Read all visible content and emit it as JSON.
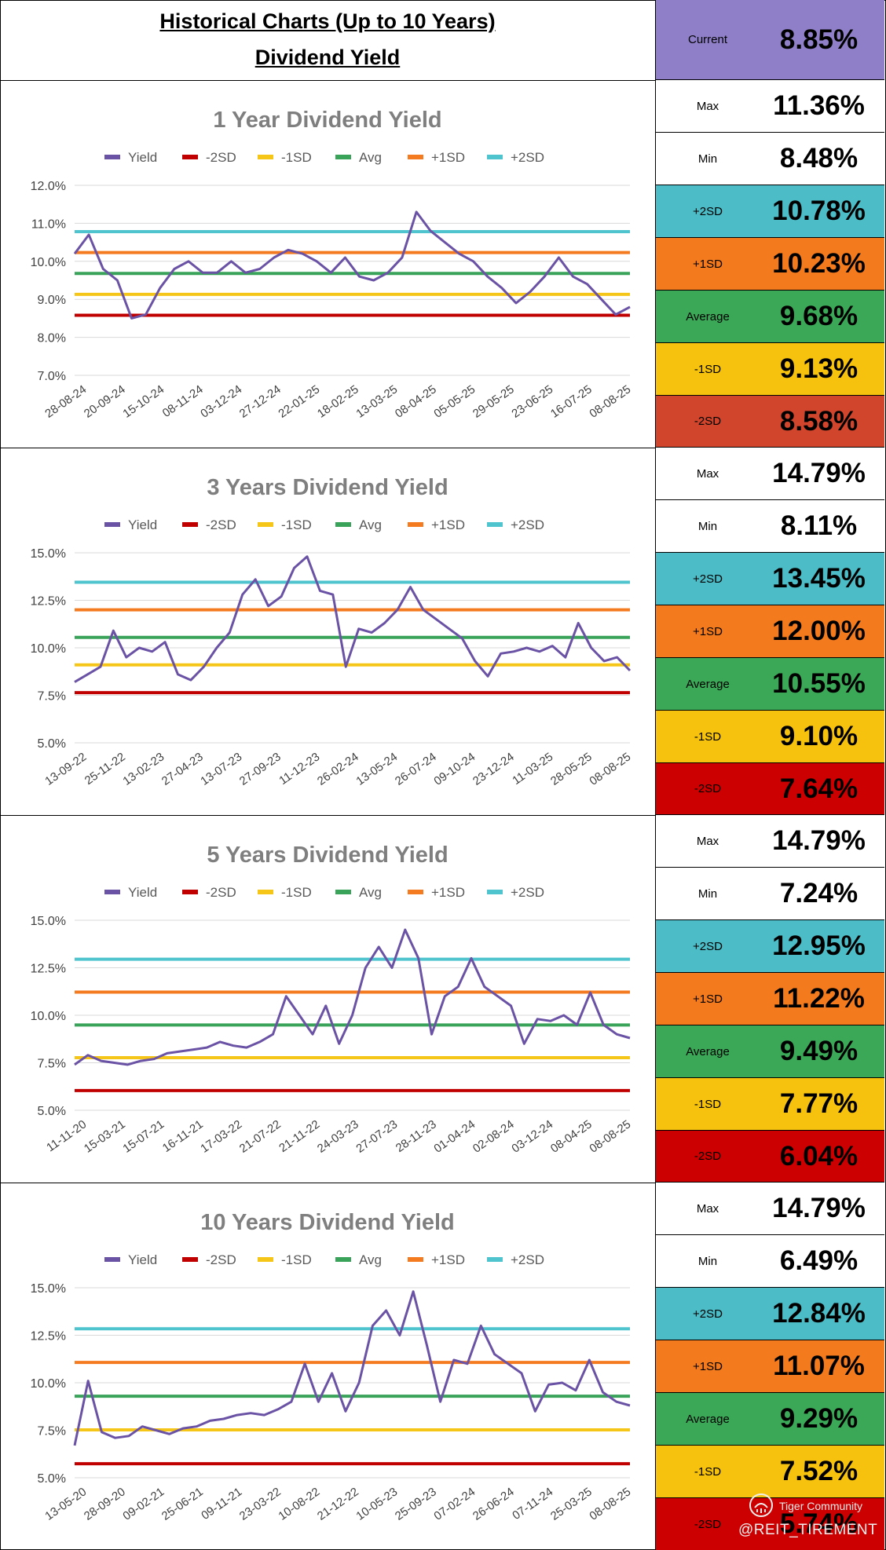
{
  "header": {
    "title_line1": "Historical Charts (Up to 10 Years)",
    "title_line2": "Dividend Yield",
    "current_label": "Current",
    "current_value": "8.85%"
  },
  "colors": {
    "yield": "#6a52a5",
    "minus2sd": "#c00000",
    "minus1sd": "#f5c518",
    "avg": "#3aa35a",
    "plus1sd": "#f47b20",
    "plus2sd": "#4fc4cf",
    "current_bg": "#8f7fc8",
    "stat_plus2sd_bg": "#4cbcc7",
    "stat_plus1sd_bg": "#f47a1e",
    "stat_avg_bg": "#3aa857",
    "stat_minus1sd_bg": "#f6c20e",
    "stat_minus2sd_bg_1y": "#d0452b",
    "stat_minus2sd_bg": "#cc0000"
  },
  "legend": [
    "Yield",
    "-2SD",
    "-1SD",
    "Avg",
    "+1SD",
    "+2SD"
  ],
  "panels": [
    {
      "stats": [
        {
          "label": "Max",
          "value": "11.36%"
        },
        {
          "label": "Min",
          "value": "8.48%"
        },
        {
          "label": "+2SD",
          "value": "10.78%"
        },
        {
          "label": "+1SD",
          "value": "10.23%"
        },
        {
          "label": "Average",
          "value": "9.68%"
        },
        {
          "label": "-1SD",
          "value": "9.13%"
        },
        {
          "label": "-2SD",
          "value": "8.58%"
        }
      ]
    },
    {
      "stats": [
        {
          "label": "Max",
          "value": "14.79%"
        },
        {
          "label": "Min",
          "value": "8.11%"
        },
        {
          "label": "+2SD",
          "value": "13.45%"
        },
        {
          "label": "+1SD",
          "value": "12.00%"
        },
        {
          "label": "Average",
          "value": "10.55%"
        },
        {
          "label": "-1SD",
          "value": "9.10%"
        },
        {
          "label": "-2SD",
          "value": "7.64%"
        }
      ]
    },
    {
      "stats": [
        {
          "label": "Max",
          "value": "14.79%"
        },
        {
          "label": "Min",
          "value": "7.24%"
        },
        {
          "label": "+2SD",
          "value": "12.95%"
        },
        {
          "label": "+1SD",
          "value": "11.22%"
        },
        {
          "label": "Average",
          "value": "9.49%"
        },
        {
          "label": "-1SD",
          "value": "7.77%"
        },
        {
          "label": "-2SD",
          "value": "6.04%"
        }
      ]
    },
    {
      "stats": [
        {
          "label": "Max",
          "value": "14.79%"
        },
        {
          "label": "Min",
          "value": "6.49%"
        },
        {
          "label": "+2SD",
          "value": "12.84%"
        },
        {
          "label": "+1SD",
          "value": "11.07%"
        },
        {
          "label": "Average",
          "value": "9.29%"
        },
        {
          "label": "-1SD",
          "value": "7.52%"
        },
        {
          "label": "-2SD",
          "value": "5.74%"
        }
      ]
    }
  ],
  "chart_data": [
    {
      "type": "line",
      "title": "1 Year Dividend Yield",
      "yticks": [
        "12.0%",
        "11.0%",
        "10.0%",
        "9.0%",
        "8.0%",
        "7.0%"
      ],
      "ylim": [
        7.0,
        12.0
      ],
      "x": [
        "28-08-24",
        "20-09-24",
        "15-10-24",
        "08-11-24",
        "03-12-24",
        "27-12-24",
        "22-01-25",
        "18-02-25",
        "13-03-25",
        "08-04-25",
        "05-05-25",
        "29-05-25",
        "23-06-25",
        "16-07-25",
        "08-08-25"
      ],
      "yield": [
        10.2,
        10.7,
        9.8,
        9.5,
        8.5,
        8.6,
        9.3,
        9.8,
        10.0,
        9.7,
        9.7,
        10.0,
        9.7,
        9.8,
        10.1,
        10.3,
        10.2,
        10.0,
        9.7,
        10.1,
        9.6,
        9.5,
        9.7,
        10.1,
        11.3,
        10.8,
        10.5,
        10.2,
        10.0,
        9.6,
        9.3,
        8.9,
        9.2,
        9.6,
        10.1,
        9.6,
        9.4,
        9.0,
        8.6,
        8.8
      ],
      "series": [
        {
          "name": "-2SD",
          "value": 8.58
        },
        {
          "name": "-1SD",
          "value": 9.13
        },
        {
          "name": "Avg",
          "value": 9.68
        },
        {
          "name": "+1SD",
          "value": 10.23
        },
        {
          "name": "+2SD",
          "value": 10.78
        }
      ],
      "grid": true,
      "legend_position": "top"
    },
    {
      "type": "line",
      "title": "3 Years Dividend Yield",
      "yticks": [
        "15.0%",
        "12.5%",
        "10.0%",
        "7.5%",
        "5.0%"
      ],
      "ylim": [
        5.0,
        15.0
      ],
      "x": [
        "13-09-22",
        "25-11-22",
        "13-02-23",
        "27-04-23",
        "13-07-23",
        "27-09-23",
        "11-12-23",
        "26-02-24",
        "13-05-24",
        "26-07-24",
        "09-10-24",
        "23-12-24",
        "11-03-25",
        "28-05-25",
        "08-08-25"
      ],
      "yield": [
        8.2,
        8.6,
        9.0,
        10.9,
        9.5,
        10.0,
        9.8,
        10.3,
        8.6,
        8.3,
        9.0,
        10.0,
        10.8,
        12.8,
        13.6,
        12.2,
        12.7,
        14.2,
        14.8,
        13.0,
        12.8,
        9.0,
        11.0,
        10.8,
        11.3,
        12.0,
        13.2,
        12.0,
        11.5,
        11.0,
        10.5,
        9.3,
        8.5,
        9.7,
        9.8,
        10.0,
        9.8,
        10.1,
        9.5,
        11.3,
        10.0,
        9.3,
        9.5,
        8.8
      ],
      "series": [
        {
          "name": "-2SD",
          "value": 7.64
        },
        {
          "name": "-1SD",
          "value": 9.1
        },
        {
          "name": "Avg",
          "value": 10.55
        },
        {
          "name": "+1SD",
          "value": 12.0
        },
        {
          "name": "+2SD",
          "value": 13.45
        }
      ],
      "grid": true,
      "legend_position": "top"
    },
    {
      "type": "line",
      "title": "5 Years Dividend Yield",
      "yticks": [
        "15.0%",
        "12.5%",
        "10.0%",
        "7.5%",
        "5.0%"
      ],
      "ylim": [
        5.0,
        15.0
      ],
      "x": [
        "11-11-20",
        "15-03-21",
        "15-07-21",
        "16-11-21",
        "17-03-22",
        "21-07-22",
        "21-11-22",
        "24-03-23",
        "27-07-23",
        "28-11-23",
        "01-04-24",
        "02-08-24",
        "03-12-24",
        "08-04-25",
        "08-08-25"
      ],
      "yield": [
        7.4,
        7.9,
        7.6,
        7.5,
        7.4,
        7.6,
        7.7,
        8.0,
        8.1,
        8.2,
        8.3,
        8.6,
        8.4,
        8.3,
        8.6,
        9.0,
        11.0,
        10.0,
        9.0,
        10.5,
        8.5,
        10.0,
        12.5,
        13.6,
        12.5,
        14.5,
        13.0,
        9.0,
        11.0,
        11.5,
        13.0,
        11.5,
        11.0,
        10.5,
        8.5,
        9.8,
        9.7,
        10.0,
        9.5,
        11.2,
        9.5,
        9.0,
        8.8
      ],
      "series": [
        {
          "name": "-2SD",
          "value": 6.04
        },
        {
          "name": "-1SD",
          "value": 7.77
        },
        {
          "name": "Avg",
          "value": 9.49
        },
        {
          "name": "+1SD",
          "value": 11.22
        },
        {
          "name": "+2SD",
          "value": 12.95
        }
      ],
      "grid": true,
      "legend_position": "top"
    },
    {
      "type": "line",
      "title": "10 Years Dividend Yield",
      "yticks": [
        "15.0%",
        "12.5%",
        "10.0%",
        "7.5%",
        "5.0%"
      ],
      "ylim": [
        5.0,
        15.0
      ],
      "x": [
        "13-05-20",
        "28-09-20",
        "09-02-21",
        "25-06-21",
        "09-11-21",
        "23-03-22",
        "10-08-22",
        "21-12-22",
        "10-05-23",
        "25-09-23",
        "07-02-24",
        "26-06-24",
        "07-11-24",
        "25-03-25",
        "08-08-25"
      ],
      "yield": [
        6.7,
        10.1,
        7.4,
        7.1,
        7.2,
        7.7,
        7.5,
        7.3,
        7.6,
        7.7,
        8.0,
        8.1,
        8.3,
        8.4,
        8.3,
        8.6,
        9.0,
        11.0,
        9.0,
        10.5,
        8.5,
        10.0,
        13.0,
        13.8,
        12.5,
        14.8,
        12.0,
        9.0,
        11.2,
        11.0,
        13.0,
        11.5,
        11.0,
        10.5,
        8.5,
        9.9,
        10.0,
        9.6,
        11.2,
        9.5,
        9.0,
        8.8
      ],
      "series": [
        {
          "name": "-2SD",
          "value": 5.74
        },
        {
          "name": "-1SD",
          "value": 7.52
        },
        {
          "name": "Avg",
          "value": 9.29
        },
        {
          "name": "+1SD",
          "value": 11.07
        },
        {
          "name": "+2SD",
          "value": 12.84
        }
      ],
      "grid": true,
      "legend_position": "top"
    }
  ],
  "watermark": {
    "brand": "Tiger Community",
    "handle": "@REIT_TIREMENT"
  }
}
